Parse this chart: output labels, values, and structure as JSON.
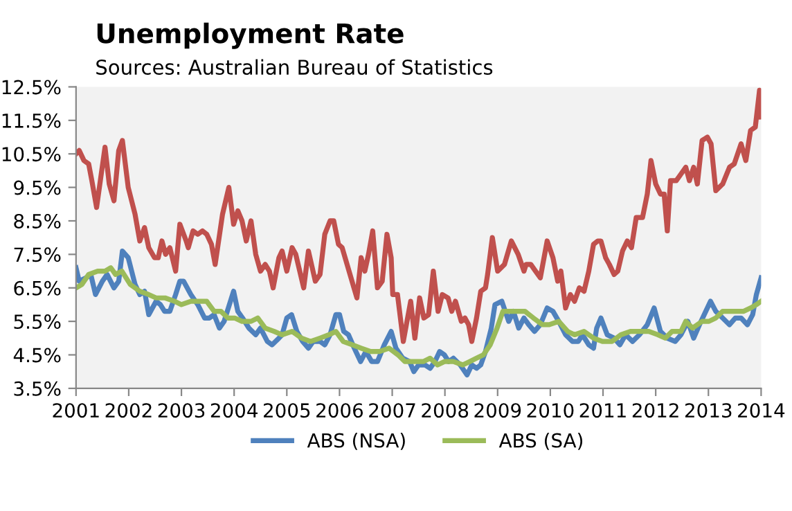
{
  "chart_data": {
    "type": "line",
    "title": "Unemployment Rate",
    "subtitle": "Sources: Australian Bureau of Statistics",
    "xlim": [
      2001,
      2014
    ],
    "xticks": [
      2001,
      2002,
      2003,
      2004,
      2005,
      2006,
      2007,
      2008,
      2009,
      2010,
      2011,
      2012,
      2013,
      2014
    ],
    "ylim": [
      3.5,
      12.5
    ],
    "yticks": [
      {
        "value": 3.5,
        "label": "3.5%"
      },
      {
        "value": 4.5,
        "label": "4.5%"
      },
      {
        "value": 5.5,
        "label": "5.5%"
      },
      {
        "value": 6.5,
        "label": "6.5%"
      },
      {
        "value": 7.5,
        "label": "7.5%"
      },
      {
        "value": 8.5,
        "label": "8.5%"
      },
      {
        "value": 9.5,
        "label": "9.5%"
      },
      {
        "value": 10.5,
        "label": "10.5%"
      },
      {
        "value": 11.5,
        "label": "11.5%"
      },
      {
        "value": 12.5,
        "label": "12.5%"
      }
    ],
    "grid": false,
    "legend": "bottom",
    "marker": "none",
    "line_style": "solid",
    "series": [
      {
        "color": "#c0504d",
        "x": [
          2001.0,
          2001.06,
          2001.15,
          2001.24,
          2001.3,
          2001.39,
          2001.55,
          2001.63,
          2001.72,
          2001.81,
          2001.88,
          2001.99,
          2002.12,
          2002.21,
          2002.3,
          2002.38,
          2002.49,
          2002.56,
          2002.63,
          2002.7,
          2002.78,
          2002.89,
          2002.97,
          2003.09,
          2003.13,
          2003.22,
          2003.31,
          2003.4,
          2003.48,
          2003.57,
          2003.64,
          2003.78,
          2003.9,
          2003.99,
          2004.07,
          2004.15,
          2004.23,
          2004.32,
          2004.41,
          2004.5,
          2004.59,
          2004.67,
          2004.74,
          2004.85,
          2004.91,
          2005.0,
          2005.1,
          2005.17,
          2005.32,
          2005.41,
          2005.54,
          2005.63,
          2005.72,
          2005.82,
          2005.89,
          2005.98,
          2006.05,
          2006.33,
          2006.41,
          2006.48,
          2006.55,
          2006.63,
          2006.72,
          2006.81,
          2006.9,
          2006.98,
          2007.01,
          2007.1,
          2007.21,
          2007.35,
          2007.43,
          2007.52,
          2007.6,
          2007.69,
          2007.78,
          2007.87,
          2007.95,
          2008.06,
          2008.13,
          2008.2,
          2008.31,
          2008.38,
          2008.45,
          2008.51,
          2008.6,
          2008.68,
          2008.77,
          2008.81,
          2008.9,
          2009.0,
          2009.13,
          2009.26,
          2009.39,
          2009.5,
          2009.54,
          2009.63,
          2009.72,
          2009.81,
          2009.94,
          2010.05,
          2010.14,
          2010.2,
          2010.29,
          2010.38,
          2010.46,
          2010.55,
          2010.64,
          2010.73,
          2010.82,
          2010.9,
          2010.96,
          2011.05,
          2011.12,
          2011.21,
          2011.28,
          2011.37,
          2011.46,
          2011.54,
          2011.63,
          2011.75,
          2011.84,
          2011.91,
          2012.0,
          2012.09,
          2012.16,
          2012.22,
          2012.28,
          2012.39,
          2012.48,
          2012.57,
          2012.64,
          2012.72,
          2012.79,
          2012.88,
          2012.98,
          2013.05,
          2013.14,
          2013.27,
          2013.4,
          2013.49,
          2013.62,
          2013.71,
          2013.8,
          2013.89,
          2013.97,
          2014.0
        ],
        "values": [
          10.5,
          10.6,
          10.3,
          10.2,
          9.7,
          8.9,
          10.7,
          9.6,
          9.1,
          10.6,
          10.9,
          9.5,
          8.7,
          7.9,
          8.3,
          7.7,
          7.4,
          7.4,
          7.9,
          7.5,
          7.7,
          7.0,
          8.4,
          7.9,
          7.7,
          8.2,
          8.1,
          8.2,
          8.1,
          7.8,
          7.2,
          8.7,
          9.5,
          8.4,
          8.8,
          8.5,
          7.9,
          8.5,
          7.5,
          7.0,
          7.2,
          7.0,
          6.5,
          7.4,
          7.6,
          7.0,
          7.7,
          7.5,
          6.5,
          7.6,
          6.7,
          6.9,
          8.1,
          8.5,
          8.5,
          7.8,
          7.7,
          6.2,
          7.4,
          7.0,
          7.5,
          8.2,
          6.5,
          6.7,
          8.1,
          7.4,
          6.3,
          6.3,
          4.9,
          6.1,
          5.0,
          6.2,
          5.6,
          5.7,
          7.0,
          5.8,
          6.3,
          6.2,
          5.8,
          6.1,
          5.5,
          5.6,
          5.4,
          4.9,
          5.6,
          6.4,
          6.5,
          6.9,
          8.0,
          7.0,
          7.2,
          7.9,
          7.5,
          7.0,
          7.2,
          7.2,
          7.0,
          6.8,
          7.9,
          7.4,
          6.7,
          7.0,
          5.9,
          6.3,
          6.1,
          6.5,
          6.4,
          7.0,
          7.8,
          7.9,
          7.9,
          7.4,
          7.2,
          6.9,
          7.0,
          7.6,
          7.9,
          7.7,
          8.6,
          8.6,
          9.3,
          10.3,
          9.6,
          9.3,
          9.3,
          8.2,
          9.7,
          9.7,
          9.9,
          10.1,
          9.7,
          10.1,
          9.6,
          10.9,
          11.0,
          10.8,
          9.4,
          9.6,
          10.1,
          10.2,
          10.8,
          10.3,
          11.2,
          11.3,
          12.4,
          11.6
        ]
      },
      {
        "name": "ABS (NSA)",
        "color": "#4f81bd",
        "x": [
          2001.0,
          2001.06,
          2001.19,
          2001.28,
          2001.37,
          2001.5,
          2001.59,
          2001.72,
          2001.81,
          2001.88,
          2001.99,
          2002.12,
          2002.21,
          2002.3,
          2002.38,
          2002.52,
          2002.6,
          2002.68,
          2002.78,
          2002.89,
          2002.97,
          2003.04,
          2003.18,
          2003.31,
          2003.44,
          2003.53,
          2003.62,
          2003.72,
          2003.81,
          2003.99,
          2004.07,
          2004.16,
          2004.28,
          2004.41,
          2004.5,
          2004.63,
          2004.72,
          2004.85,
          2004.91,
          2005.0,
          2005.09,
          2005.19,
          2005.3,
          2005.41,
          2005.5,
          2005.63,
          2005.72,
          2005.82,
          2005.93,
          2006.0,
          2006.08,
          2006.17,
          2006.28,
          2006.4,
          2006.5,
          2006.61,
          2006.72,
          2006.85,
          2006.98,
          2007.07,
          2007.2,
          2007.33,
          2007.41,
          2007.5,
          2007.62,
          2007.72,
          2007.81,
          2007.9,
          2007.99,
          2008.07,
          2008.16,
          2008.29,
          2008.42,
          2008.51,
          2008.6,
          2008.68,
          2008.77,
          2008.88,
          2008.95,
          2009.08,
          2009.21,
          2009.3,
          2009.4,
          2009.5,
          2009.59,
          2009.7,
          2009.81,
          2009.94,
          2010.05,
          2010.16,
          2010.29,
          2010.42,
          2010.53,
          2010.61,
          2010.73,
          2010.82,
          2010.88,
          2010.96,
          2011.08,
          2011.21,
          2011.32,
          2011.43,
          2011.56,
          2011.69,
          2011.84,
          2011.97,
          2012.09,
          2012.22,
          2012.37,
          2012.48,
          2012.61,
          2012.72,
          2012.83,
          2012.95,
          2013.04,
          2013.14,
          2013.27,
          2013.4,
          2013.51,
          2013.62,
          2013.74,
          2013.84,
          2013.91,
          2014.0
        ],
        "values": [
          7.1,
          6.7,
          6.8,
          6.9,
          6.3,
          6.7,
          6.9,
          6.5,
          6.7,
          7.6,
          7.4,
          6.6,
          6.3,
          6.4,
          5.7,
          6.1,
          6.0,
          5.8,
          5.8,
          6.3,
          6.7,
          6.7,
          6.3,
          6.0,
          5.6,
          5.6,
          5.7,
          5.3,
          5.5,
          6.4,
          5.8,
          5.6,
          5.3,
          5.1,
          5.3,
          4.9,
          4.8,
          5.0,
          5.1,
          5.6,
          5.7,
          5.2,
          4.9,
          4.7,
          4.9,
          4.9,
          4.8,
          5.1,
          5.7,
          5.7,
          5.2,
          5.1,
          4.7,
          4.3,
          4.6,
          4.3,
          4.3,
          4.8,
          5.2,
          4.7,
          4.4,
          4.3,
          4.0,
          4.2,
          4.2,
          4.1,
          4.3,
          4.6,
          4.5,
          4.3,
          4.4,
          4.2,
          3.9,
          4.2,
          4.1,
          4.2,
          4.6,
          5.3,
          6.0,
          6.1,
          5.5,
          5.8,
          5.3,
          5.6,
          5.4,
          5.2,
          5.4,
          5.9,
          5.8,
          5.5,
          5.1,
          4.9,
          4.9,
          5.1,
          4.8,
          4.7,
          5.3,
          5.6,
          5.1,
          5.0,
          4.8,
          5.1,
          4.9,
          5.1,
          5.4,
          5.9,
          5.2,
          5.0,
          4.9,
          5.1,
          5.5,
          5.0,
          5.4,
          5.8,
          6.1,
          5.8,
          5.6,
          5.4,
          5.6,
          5.6,
          5.4,
          5.7,
          6.3,
          6.8
        ]
      },
      {
        "name": "ABS (SA)",
        "color": "#9bbb59",
        "x": [
          2001.0,
          2001.11,
          2001.24,
          2001.41,
          2001.55,
          2001.66,
          2001.75,
          2001.87,
          2002.03,
          2002.21,
          2002.38,
          2002.52,
          2002.69,
          2002.87,
          2003.0,
          2003.18,
          2003.35,
          2003.48,
          2003.62,
          2003.75,
          2003.88,
          2004.01,
          2004.15,
          2004.32,
          2004.45,
          2004.59,
          2004.76,
          2004.91,
          2005.1,
          2005.28,
          2005.45,
          2005.63,
          2005.8,
          2005.93,
          2006.07,
          2006.24,
          2006.41,
          2006.59,
          2006.76,
          2006.94,
          2007.11,
          2007.24,
          2007.41,
          2007.59,
          2007.72,
          2007.86,
          2007.99,
          2008.16,
          2008.34,
          2008.47,
          2008.6,
          2008.73,
          2008.86,
          2008.99,
          2009.1,
          2009.21,
          2009.34,
          2009.52,
          2009.68,
          2009.85,
          2009.98,
          2010.16,
          2010.33,
          2010.46,
          2010.64,
          2010.82,
          2010.99,
          2011.17,
          2011.34,
          2011.52,
          2011.69,
          2011.87,
          2012.04,
          2012.18,
          2012.31,
          2012.48,
          2012.57,
          2012.7,
          2012.88,
          2013.01,
          2013.14,
          2013.27,
          2013.4,
          2013.54,
          2013.67,
          2013.8,
          2013.91,
          2014.0
        ],
        "values": [
          6.5,
          6.6,
          6.9,
          7.0,
          7.0,
          7.1,
          6.9,
          7.0,
          6.6,
          6.4,
          6.3,
          6.2,
          6.2,
          6.1,
          6.0,
          6.1,
          6.1,
          6.1,
          5.8,
          5.8,
          5.6,
          5.6,
          5.5,
          5.5,
          5.6,
          5.3,
          5.2,
          5.1,
          5.2,
          5.0,
          4.9,
          5.0,
          5.1,
          5.2,
          4.9,
          4.8,
          4.7,
          4.6,
          4.6,
          4.7,
          4.5,
          4.3,
          4.3,
          4.3,
          4.4,
          4.2,
          4.3,
          4.3,
          4.2,
          4.3,
          4.4,
          4.5,
          4.8,
          5.3,
          5.8,
          5.8,
          5.8,
          5.8,
          5.6,
          5.4,
          5.4,
          5.5,
          5.2,
          5.1,
          5.2,
          5.0,
          4.9,
          4.9,
          5.1,
          5.2,
          5.2,
          5.2,
          5.1,
          5.0,
          5.2,
          5.2,
          5.5,
          5.3,
          5.5,
          5.5,
          5.6,
          5.8,
          5.8,
          5.8,
          5.8,
          5.9,
          6.0,
          6.1
        ]
      }
    ]
  }
}
